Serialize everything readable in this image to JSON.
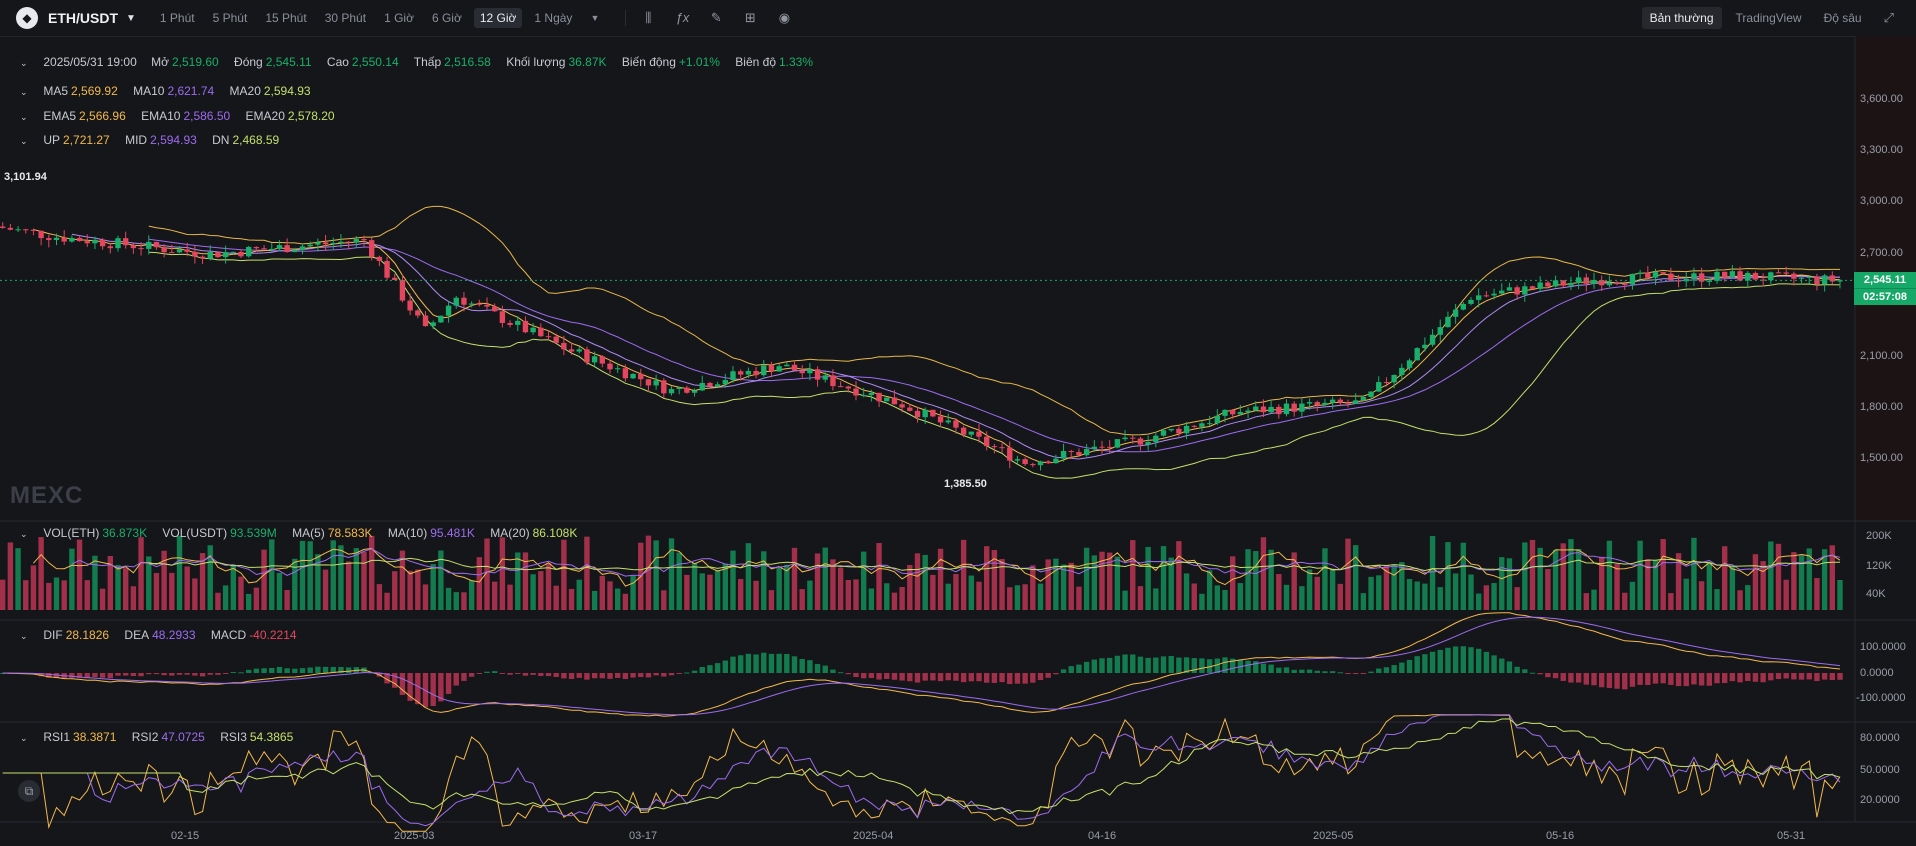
{
  "header": {
    "pair": "ETH/USDT",
    "timeframes": [
      "1 Phút",
      "5 Phút",
      "15 Phút",
      "30 Phút",
      "1 Giờ",
      "6 Giờ",
      "12 Giờ",
      "1 Ngày"
    ],
    "active_timeframe": "12 Giờ",
    "tool_icons": [
      "candle-type-icon",
      "indicator-fx-icon",
      "draw-pencil-icon",
      "layout-grid-icon",
      "camera-icon"
    ],
    "views": [
      "Bản thường",
      "TradingView",
      "Độ sâu"
    ],
    "active_view": "Bản thường"
  },
  "ohlc": {
    "datetime": "2025/05/31 19:00",
    "open_label": "Mở",
    "open": "2,519.60",
    "close_label": "Đóng",
    "close": "2,545.11",
    "high_label": "Cao",
    "high": "2,550.14",
    "low_label": "Thấp",
    "low": "2,516.58",
    "volume_label": "Khối lượng",
    "volume": "36.87K",
    "change_label": "Biến động",
    "change": "+1.01%",
    "amplitude_label": "Biên độ",
    "amplitude": "1.33%"
  },
  "ma": {
    "ma5_label": "MA5",
    "ma5": "2,569.92",
    "ma10_label": "MA10",
    "ma10": "2,621.74",
    "ma20_label": "MA20",
    "ma20": "2,594.93"
  },
  "ema": {
    "ema5_label": "EMA5",
    "ema5": "2,566.96",
    "ema10_label": "EMA10",
    "ema10": "2,586.50",
    "ema20_label": "EMA20",
    "ema20": "2,578.20"
  },
  "boll": {
    "up_label": "UP",
    "up": "2,721.27",
    "mid_label": "MID",
    "mid": "2,594.93",
    "dn_label": "DN",
    "dn": "2,468.59"
  },
  "vol": {
    "eth_label": "VOL(ETH)",
    "eth": "36.873K",
    "usdt_label": "VOL(USDT)",
    "usdt": "93.539M",
    "ma5_label": "MA(5)",
    "ma5": "78.583K",
    "ma10_label": "MA(10)",
    "ma10": "95.481K",
    "ma20_label": "MA(20)",
    "ma20": "86.108K"
  },
  "macd": {
    "dif_label": "DIF",
    "dif": "28.1826",
    "dea_label": "DEA",
    "dea": "48.2933",
    "macd_label": "MACD",
    "macd": "-40.2214"
  },
  "rsi": {
    "rsi1_label": "RSI1",
    "rsi1": "38.3871",
    "rsi2_label": "RSI2",
    "rsi2": "47.0725",
    "rsi3_label": "RSI3",
    "rsi3": "54.3865"
  },
  "price_axis": [
    "3,600.00",
    "3,300.00",
    "3,000.00",
    "2,700.00",
    "2,100.00",
    "1,800.00",
    "1,500.00"
  ],
  "vol_axis": [
    "200K",
    "120K",
    "40K"
  ],
  "macd_axis": [
    "100.0000",
    "0.0000",
    "-100.0000"
  ],
  "rsi_axis": [
    "80.0000",
    "50.0000",
    "20.0000"
  ],
  "x_axis": [
    "02-15",
    "2025-03",
    "03-17",
    "2025-04",
    "04-16",
    "2025-05",
    "05-16",
    "05-31"
  ],
  "last_price": "2,545.11",
  "countdown": "02:57:08",
  "high_marker": "3,101.94",
  "low_marker": "1,385.50",
  "watermark": "MEXC",
  "colors": {
    "up": "#18b06a",
    "down": "#e4475d",
    "ma5": "#f3b94b",
    "ma10": "#9c6cf0",
    "ma20": "#c5e06a",
    "boll": "#e8b84a"
  },
  "chart_data": {
    "type": "candlestick",
    "interval": "12h",
    "price_range": [
      1385.5,
      3101.94
    ],
    "anchors": [
      {
        "x": "2025-02-05",
        "close": 2800
      },
      {
        "x": "2025-02-15",
        "close": 2700
      },
      {
        "x": "2025-02-25",
        "close": 2780
      },
      {
        "x": "2025-03-01",
        "close": 2250
      },
      {
        "x": "2025-03-03",
        "close": 2450
      },
      {
        "x": "2025-03-10",
        "close": 2150
      },
      {
        "x": "2025-03-17",
        "close": 1900
      },
      {
        "x": "2025-03-24",
        "close": 2050
      },
      {
        "x": "2025-04-01",
        "close": 1820
      },
      {
        "x": "2025-04-09",
        "close": 1480
      },
      {
        "x": "2025-04-16",
        "close": 1600
      },
      {
        "x": "2025-04-23",
        "close": 1780
      },
      {
        "x": "2025-05-01",
        "close": 1830
      },
      {
        "x": "2025-05-08",
        "close": 2450
      },
      {
        "x": "2025-05-16",
        "close": 2550
      },
      {
        "x": "2025-05-25",
        "close": 2570
      },
      {
        "x": "2025-05-31",
        "close": 2545.11
      }
    ]
  }
}
